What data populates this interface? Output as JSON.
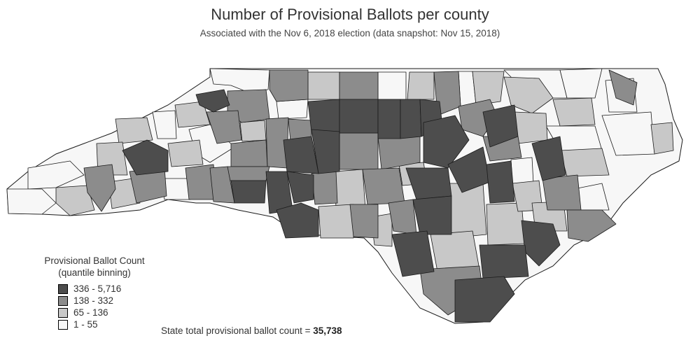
{
  "title": "Number of Provisional Ballots per county",
  "subtitle": "Associated with the Nov 6, 2018 election (data snapshot: Nov 15, 2018)",
  "legend": {
    "title_line1": "Provisional Ballot Count",
    "title_line2": "(quantile binning)",
    "items": [
      {
        "label": "336 - 5,716",
        "color": "#4d4d4d"
      },
      {
        "label": "138 - 332",
        "color": "#8c8c8c"
      },
      {
        "label": "65 - 136",
        "color": "#c8c8c8"
      },
      {
        "label": "1 - 55",
        "color": "#f7f7f7"
      }
    ]
  },
  "total": {
    "label": "State total provisional ballot count = ",
    "value": "35,738"
  }
}
